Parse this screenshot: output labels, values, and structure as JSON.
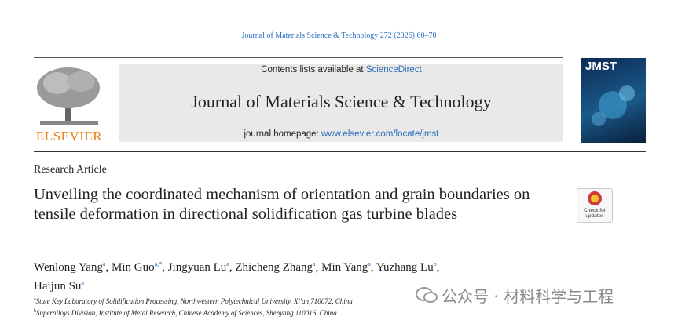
{
  "header": {
    "citation": "Journal of Materials Science & Technology 272 (2026) 60–70",
    "contents_text": "Contents lists available at ",
    "contents_link": "ScienceDirect",
    "journal": "Journal of Materials Science & Technology",
    "homepage_text": "journal homepage: ",
    "homepage_link": "www.elsevier.com/locate/jmst",
    "publisher": "ELSEVIER",
    "cover_title": "JMST"
  },
  "article": {
    "type": "Research Article",
    "title": "Unveiling the coordinated mechanism of orientation and grain boundaries on tensile deformation in directional solidification gas turbine blades",
    "check_badge": "Check for updates",
    "authors": [
      {
        "name": "Wenlong Yang",
        "sup": "a",
        "sep": ","
      },
      {
        "name": "Min Guo",
        "sup": "a,*",
        "sep": ","
      },
      {
        "name": "Jingyuan Lu",
        "sup": "a",
        "sep": ","
      },
      {
        "name": "Zhicheng Zhang",
        "sup": "a",
        "sep": ","
      },
      {
        "name": "Min Yang",
        "sup": "a",
        "sep": ","
      },
      {
        "name": "Yuzhang Lu",
        "sup": "b",
        "sep": ","
      },
      {
        "name": "Haijun Su",
        "sup": "a"
      }
    ],
    "affiliations": [
      {
        "mark": "a",
        "text": "State Key Laboratory of Solidification Processing, Northwestern Polytechnical University, Xi'an 710072, China"
      },
      {
        "mark": "b",
        "text": "Superalloys Division, Institute of Metal Research, Chinese Academy of Sciences, Shenyang 110016, China"
      }
    ]
  },
  "watermark": "公众号 · 材料科学与工程"
}
